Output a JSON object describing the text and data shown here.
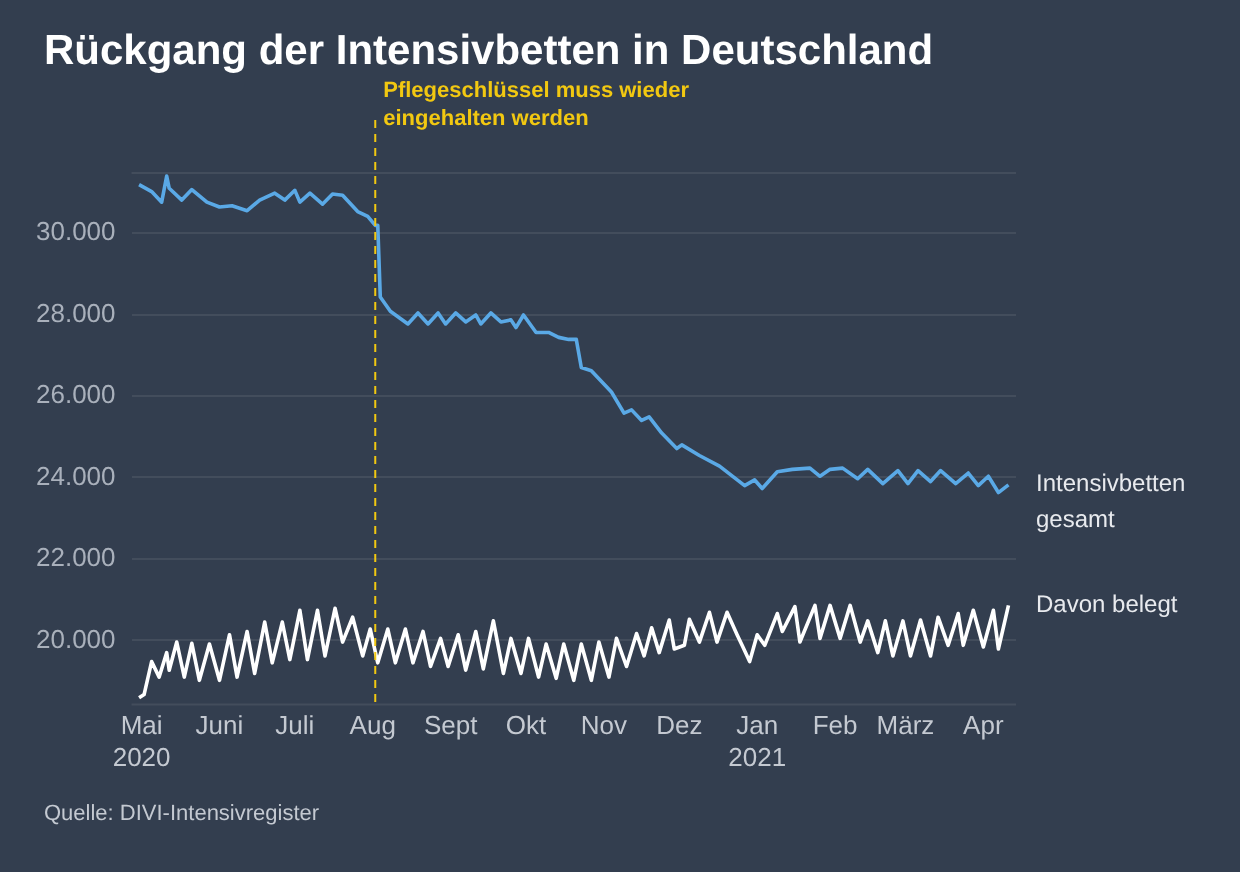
{
  "chart_data": {
    "type": "line",
    "title": "Rückgang der Intensivbetten in Deutschland",
    "annotations": [
      "Quelle: DIVI-Intensivregister"
    ],
    "xlim": [
      "2020-04-27",
      "2021-04-14"
    ],
    "xticks": [
      {
        "value": "2020-05-01",
        "label": "Mai 2020"
      },
      {
        "value": "2020-06-01",
        "label": "Juni"
      },
      {
        "value": "2020-07-01",
        "label": "Juli"
      },
      {
        "value": "2020-08-01",
        "label": "Aug"
      },
      {
        "value": "2020-09-01",
        "label": "Sept"
      },
      {
        "value": "2020-10-01",
        "label": "Okt"
      },
      {
        "value": "2020-11-01",
        "label": "Nov"
      },
      {
        "value": "2020-12-01",
        "label": "Dez"
      },
      {
        "value": "2021-01-01",
        "label": "Jan 2021"
      },
      {
        "value": "2021-02-01",
        "label": "Feb"
      },
      {
        "value": "2021-03-01",
        "label": "März"
      },
      {
        "value": "2021-04-01",
        "label": "Apr"
      }
    ],
    "ylim": [
      18400,
      31500
    ],
    "yticks": [
      {
        "value": 20000,
        "label": "20.000"
      },
      {
        "value": 22000,
        "label": "22.000"
      },
      {
        "value": 24000,
        "label": "24.000"
      },
      {
        "value": 26000,
        "label": "26.000"
      },
      {
        "value": 28000,
        "label": "28.000"
      },
      {
        "value": 30000,
        "label": "30.000"
      }
    ],
    "grid": "y",
    "legend": false,
    "marker": "none",
    "line_style": "solid",
    "ref_lines": [
      {
        "axis": "x",
        "value": "2020-08-02",
        "label": "Pflegeschlüssel muss wieder eingehalten werden",
        "color": "#f2c811",
        "line_style": "dashed"
      }
    ],
    "series": [
      {
        "name": "Intensivbetten gesamt",
        "color": "#5aa9e6",
        "x": [
          "2020-04-30",
          "2020-05-05",
          "2020-05-09",
          "2020-05-11",
          "2020-05-12",
          "2020-05-17",
          "2020-05-21",
          "2020-05-27",
          "2020-06-01",
          "2020-06-06",
          "2020-06-12",
          "2020-06-17",
          "2020-06-23",
          "2020-06-27",
          "2020-07-01",
          "2020-07-03",
          "2020-07-07",
          "2020-07-12",
          "2020-07-16",
          "2020-07-20",
          "2020-07-26",
          "2020-07-30",
          "2020-08-02",
          "2020-08-03",
          "2020-08-04",
          "2020-08-08",
          "2020-08-15",
          "2020-08-19",
          "2020-08-23",
          "2020-08-27",
          "2020-08-30",
          "2020-09-03",
          "2020-09-07",
          "2020-09-11",
          "2020-09-13",
          "2020-09-17",
          "2020-09-21",
          "2020-09-25",
          "2020-09-27",
          "2020-09-30",
          "2020-10-05",
          "2020-10-10",
          "2020-10-14",
          "2020-10-18",
          "2020-10-21",
          "2020-10-23",
          "2020-10-27",
          "2020-11-04",
          "2020-11-09",
          "2020-11-12",
          "2020-11-16",
          "2020-11-19",
          "2020-11-24",
          "2020-11-30",
          "2020-12-02",
          "2020-12-09",
          "2020-12-17",
          "2020-12-27",
          "2020-12-31",
          "2021-01-03",
          "2021-01-09",
          "2021-01-15",
          "2021-01-22",
          "2021-01-26",
          "2021-01-30",
          "2021-02-04",
          "2021-02-10",
          "2021-02-14",
          "2021-02-20",
          "2021-02-26",
          "2021-03-02",
          "2021-03-06",
          "2021-03-11",
          "2021-03-15",
          "2021-03-21",
          "2021-03-26",
          "2021-03-30",
          "2021-04-03",
          "2021-04-07",
          "2021-04-11"
        ],
        "values": [
          31190,
          31020,
          30760,
          31400,
          31100,
          30810,
          31070,
          30760,
          30640,
          30670,
          30550,
          30810,
          30980,
          30810,
          31050,
          30760,
          30980,
          30710,
          30960,
          30930,
          30530,
          30410,
          30190,
          30190,
          28430,
          28080,
          27770,
          28040,
          27770,
          28040,
          27770,
          28040,
          27820,
          27990,
          27770,
          28040,
          27820,
          27870,
          27680,
          27990,
          27560,
          27560,
          27440,
          27390,
          27390,
          26700,
          26620,
          26100,
          25580,
          25660,
          25400,
          25490,
          25090,
          24710,
          24800,
          24540,
          24280,
          23800,
          23940,
          23730,
          24140,
          24200,
          24230,
          24030,
          24200,
          24230,
          23970,
          24200,
          23850,
          24170,
          23850,
          24170,
          23900,
          24170,
          23850,
          24110,
          23800,
          24030,
          23630,
          23820
        ]
      },
      {
        "name": "Davon belegt",
        "color": "#ffffff",
        "x": [
          "2020-04-30",
          "2020-05-02",
          "2020-05-05",
          "2020-05-08",
          "2020-05-11",
          "2020-05-12",
          "2020-05-15",
          "2020-05-18",
          "2020-05-21",
          "2020-05-24",
          "2020-05-28",
          "2020-06-01",
          "2020-06-05",
          "2020-06-08",
          "2020-06-12",
          "2020-06-15",
          "2020-06-19",
          "2020-06-22",
          "2020-06-26",
          "2020-06-29",
          "2020-07-03",
          "2020-07-06",
          "2020-07-10",
          "2020-07-13",
          "2020-07-17",
          "2020-07-20",
          "2020-07-24",
          "2020-07-28",
          "2020-07-31",
          "2020-08-03",
          "2020-08-07",
          "2020-08-10",
          "2020-08-14",
          "2020-08-17",
          "2020-08-21",
          "2020-08-24",
          "2020-08-28",
          "2020-08-31",
          "2020-09-04",
          "2020-09-07",
          "2020-09-11",
          "2020-09-14",
          "2020-09-18",
          "2020-09-22",
          "2020-09-25",
          "2020-09-29",
          "2020-10-02",
          "2020-10-06",
          "2020-10-09",
          "2020-10-13",
          "2020-10-16",
          "2020-10-20",
          "2020-10-23",
          "2020-10-27",
          "2020-10-30",
          "2020-11-03",
          "2020-11-06",
          "2020-11-10",
          "2020-11-14",
          "2020-11-17",
          "2020-11-20",
          "2020-11-23",
          "2020-11-27",
          "2020-11-29",
          "2020-12-03",
          "2020-12-05",
          "2020-12-09",
          "2020-12-13",
          "2020-12-16",
          "2020-12-20",
          "2020-12-24",
          "2020-12-26",
          "2020-12-29",
          "2021-01-01",
          "2021-01-04",
          "2021-01-09",
          "2021-01-11",
          "2021-01-16",
          "2021-01-18",
          "2021-01-24",
          "2021-01-26",
          "2021-01-30",
          "2021-02-03",
          "2021-02-07",
          "2021-02-11",
          "2021-02-14",
          "2021-02-18",
          "2021-02-21",
          "2021-02-24",
          "2021-02-28",
          "2021-03-03",
          "2021-03-07",
          "2021-03-11",
          "2021-03-14",
          "2021-03-18",
          "2021-03-22",
          "2021-03-24",
          "2021-03-28",
          "2021-04-01",
          "2021-04-05",
          "2021-04-07",
          "2021-04-11"
        ],
        "values": [
          18590,
          18670,
          19480,
          19100,
          19700,
          19270,
          19960,
          19100,
          19930,
          19020,
          19910,
          19020,
          20140,
          19100,
          20220,
          19190,
          20450,
          19450,
          20450,
          19530,
          20740,
          19530,
          20740,
          19620,
          20790,
          19960,
          20570,
          19620,
          20280,
          19450,
          20280,
          19450,
          20280,
          19450,
          20220,
          19360,
          20050,
          19360,
          20140,
          19270,
          20220,
          19300,
          20480,
          19190,
          20050,
          19190,
          20050,
          19100,
          19910,
          19070,
          19910,
          19020,
          19910,
          19020,
          19960,
          19100,
          20050,
          19360,
          20170,
          19620,
          20310,
          19700,
          20500,
          19790,
          19880,
          20520,
          19960,
          20690,
          19960,
          20690,
          20140,
          19880,
          19480,
          20140,
          19880,
          20660,
          20220,
          20830,
          19960,
          20860,
          20050,
          20860,
          20050,
          20860,
          19960,
          20480,
          19700,
          20480,
          19620,
          20480,
          19620,
          20500,
          19620,
          20570,
          19880,
          20660,
          19880,
          20740,
          19840,
          20740,
          19790,
          20860
        ]
      }
    ]
  }
}
